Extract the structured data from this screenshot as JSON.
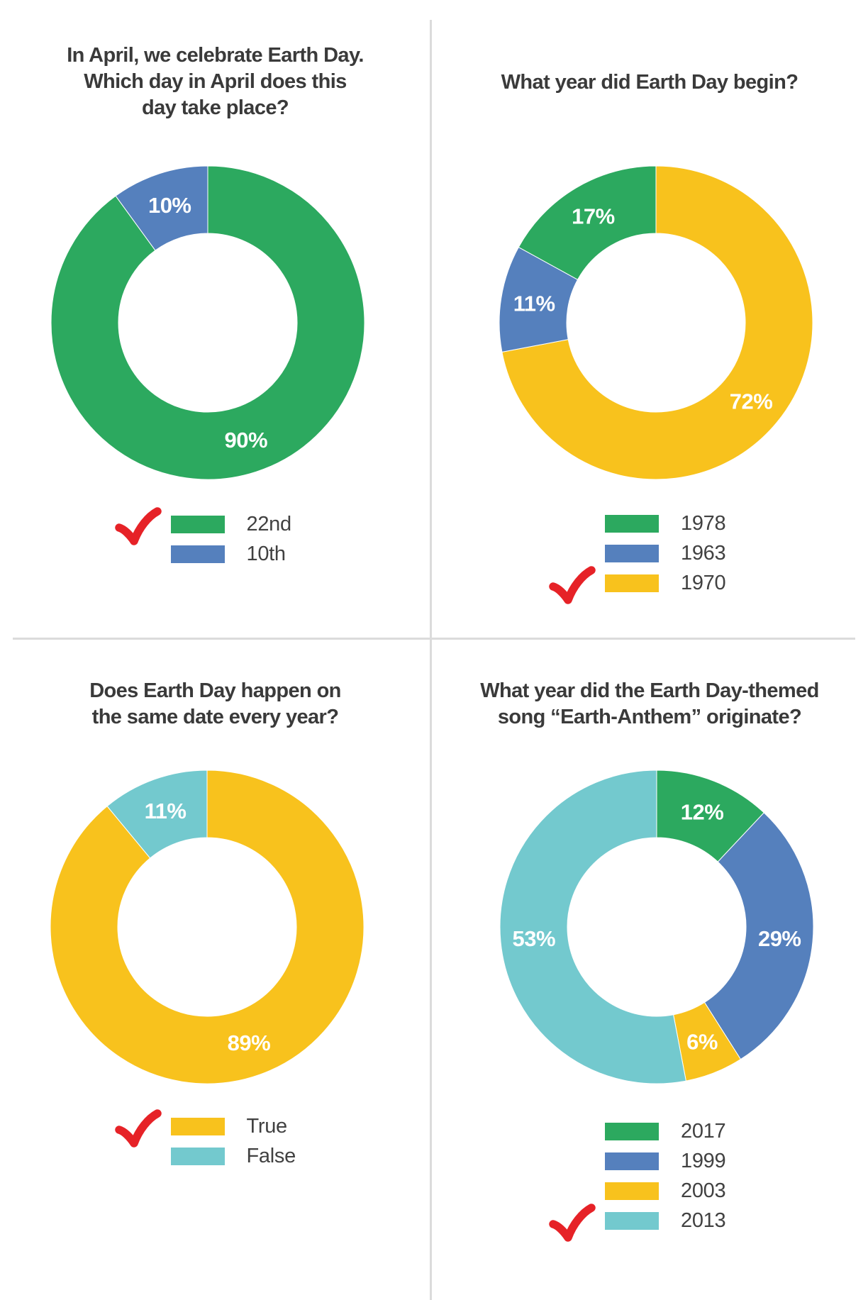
{
  "page": {
    "background": "#FFFFFF"
  },
  "colors": {
    "green": "#2CA95F",
    "blue": "#5580BD",
    "yellow": "#F8C21D",
    "teal": "#73C9CE",
    "check_red": "#E62227",
    "ink_title": "#3A3A3A",
    "ink_label": "#414141",
    "divider": "#DBDBDB",
    "percent_label": "#FFFFFF"
  },
  "chart_data": [
    {
      "type": "donut",
      "title": "In April, we celebrate Earth Day. Which day in April does this day take place?",
      "title_lines": [
        "In April, we celebrate Earth Day.",
        "Which day in April does this",
        "day take place?"
      ],
      "slices": [
        {
          "label": "22nd",
          "value": 90,
          "display": "90%",
          "color": "#2CA95F"
        },
        {
          "label": "10th",
          "value": 10,
          "display": "10%",
          "color": "#5580BD"
        }
      ],
      "slice_order": "clockwise-from-12",
      "legend": [
        {
          "label": "22nd",
          "color": "#2CA95F",
          "checked": true
        },
        {
          "label": "10th",
          "color": "#5580BD",
          "checked": false
        }
      ]
    },
    {
      "type": "donut",
      "title": "What year did Earth Day begin?",
      "title_lines": [
        "What year did Earth Day begin?"
      ],
      "slices": [
        {
          "label": "1970",
          "value": 72,
          "display": "72%",
          "color": "#F8C21D"
        },
        {
          "label": "1963",
          "value": 11,
          "display": "11%",
          "color": "#5580BD"
        },
        {
          "label": "1978",
          "value": 17,
          "display": "17%",
          "color": "#2CA95F"
        }
      ],
      "slice_order": "clockwise-from-12",
      "legend": [
        {
          "label": "1978",
          "color": "#2CA95F",
          "checked": false
        },
        {
          "label": "1963",
          "color": "#5580BD",
          "checked": false
        },
        {
          "label": "1970",
          "color": "#F8C21D",
          "checked": true
        }
      ]
    },
    {
      "type": "donut",
      "title": "Does Earth Day happen on the same date every year?",
      "title_lines": [
        "Does Earth Day happen on",
        "the same date every year?"
      ],
      "slices": [
        {
          "label": "True",
          "value": 89,
          "display": "89%",
          "color": "#F8C21D"
        },
        {
          "label": "False",
          "value": 11,
          "display": "11%",
          "color": "#73C9CE"
        }
      ],
      "slice_order": "clockwise-from-12",
      "legend": [
        {
          "label": "True",
          "color": "#F8C21D",
          "checked": true
        },
        {
          "label": "False",
          "color": "#73C9CE",
          "checked": false
        }
      ]
    },
    {
      "type": "donut",
      "title": "What year did the Earth Day-themed song “Earth-Anthem” originate?",
      "title_lines": [
        "What year did the Earth Day-themed",
        "song “Earth-Anthem” originate?"
      ],
      "slices": [
        {
          "label": "2017",
          "value": 12,
          "display": "12%",
          "color": "#2CA95F"
        },
        {
          "label": "1999",
          "value": 29,
          "display": "29%",
          "color": "#5580BD"
        },
        {
          "label": "2003",
          "value": 6,
          "display": "6%",
          "color": "#F8C21D"
        },
        {
          "label": "2013",
          "value": 53,
          "display": "53%",
          "color": "#73C9CE"
        }
      ],
      "slice_order": "clockwise-from-12",
      "legend": [
        {
          "label": "2017",
          "color": "#2CA95F",
          "checked": false
        },
        {
          "label": "1999",
          "color": "#5580BD",
          "checked": false
        },
        {
          "label": "2003",
          "color": "#F8C21D",
          "checked": false
        },
        {
          "label": "2013",
          "color": "#73C9CE",
          "checked": true
        }
      ]
    }
  ]
}
